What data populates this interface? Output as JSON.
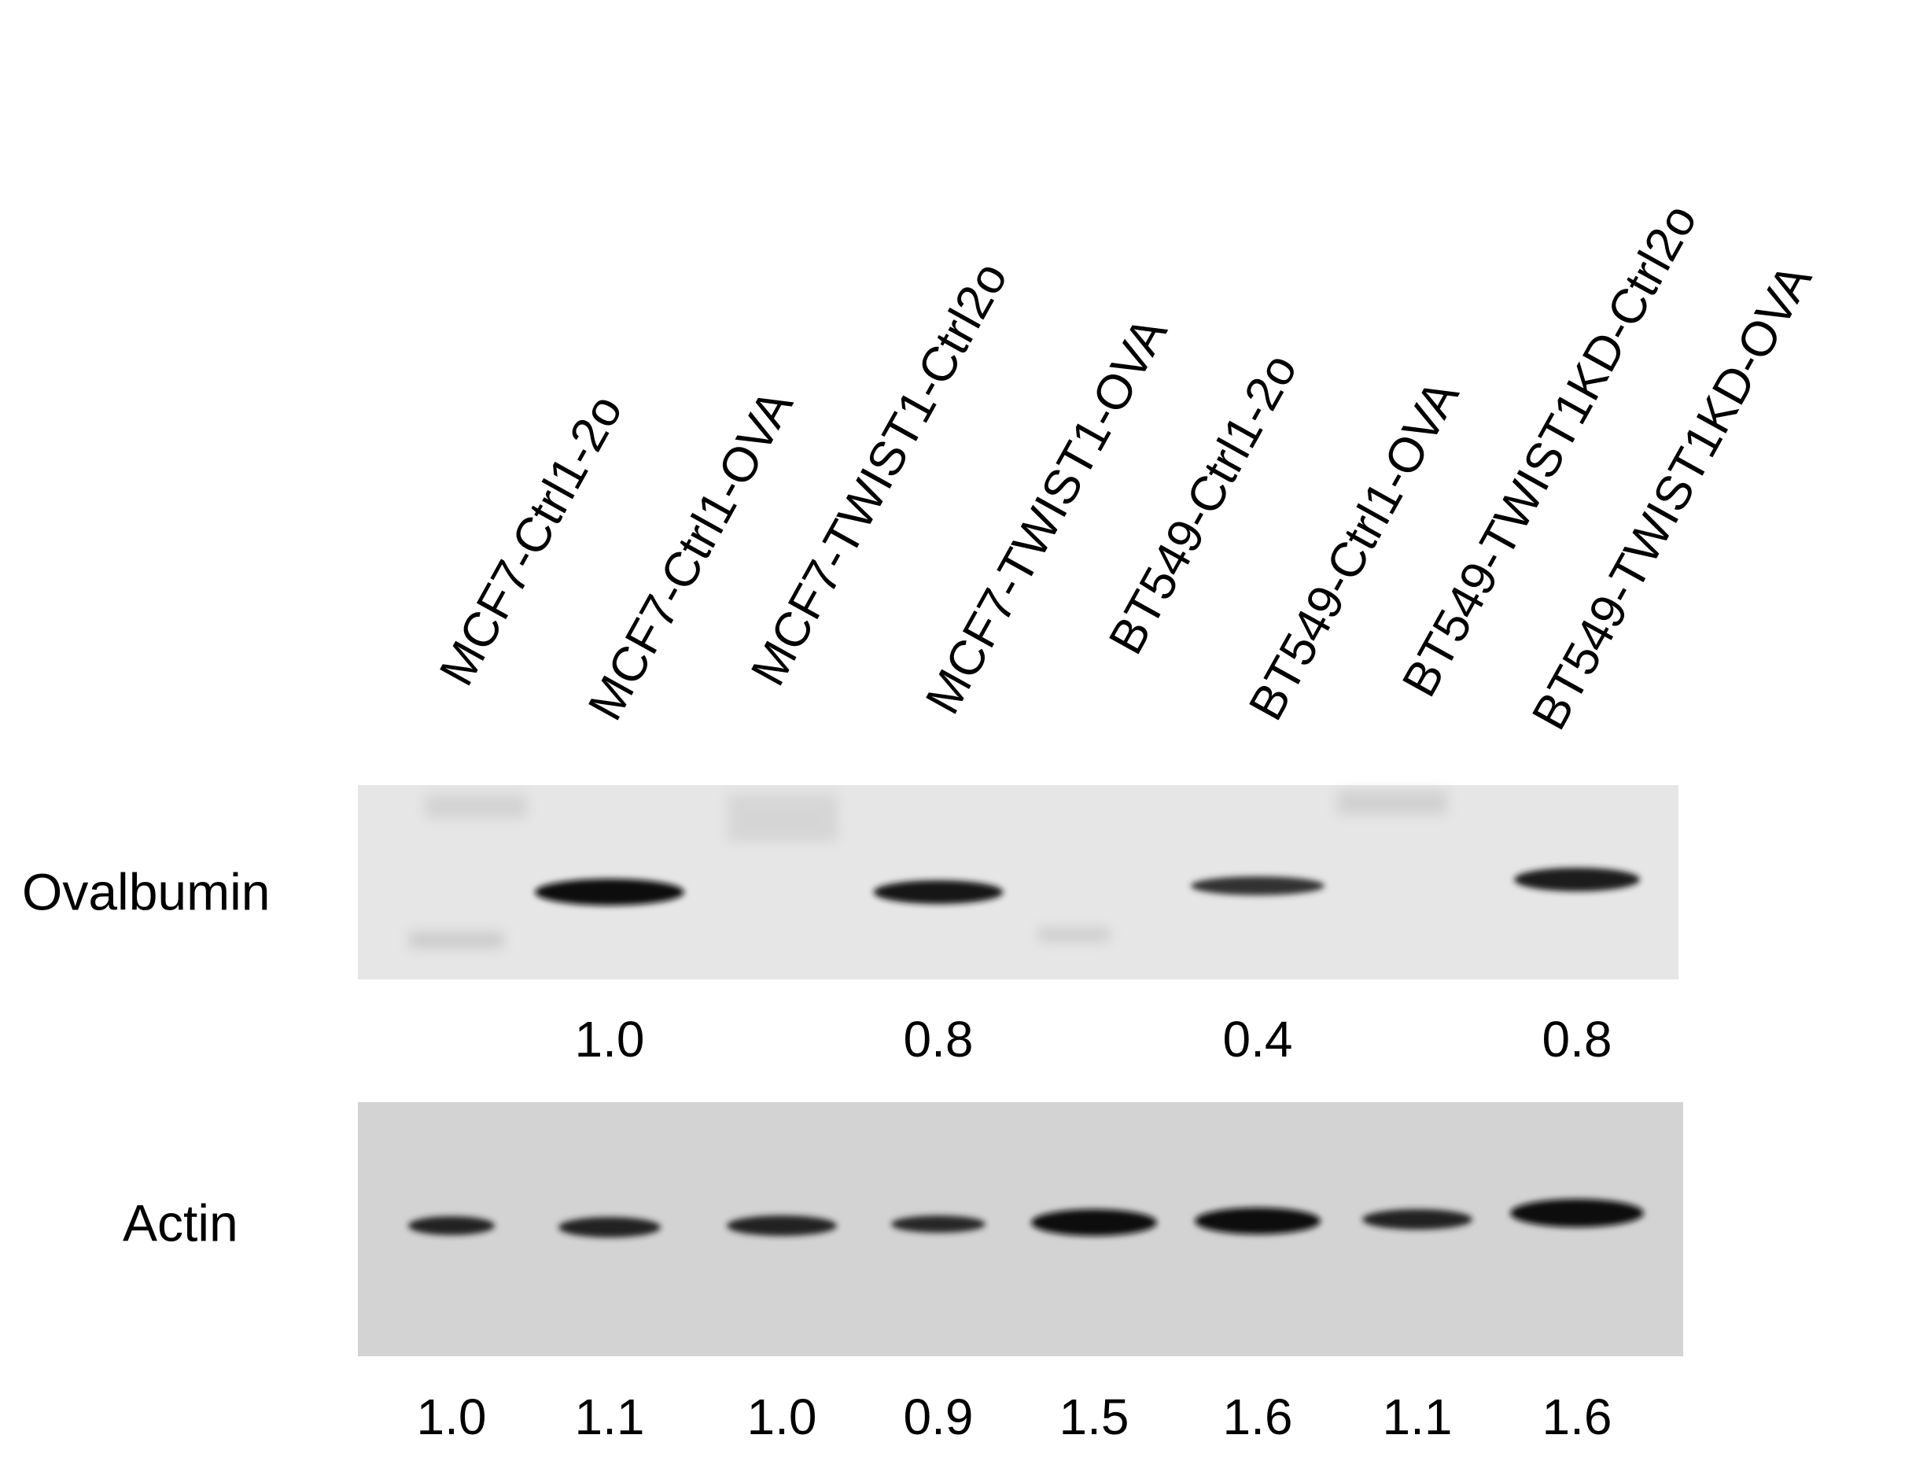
{
  "lanes": [
    "MCF7-Ctrl1-2o",
    "MCF7-Ctrl1-OVA",
    "MCF7-TWIST1-Ctrl2o",
    "MCF7-TWIST1-OVA",
    "BT549-Ctrl1-2o",
    "BT549-Ctrl1-OVA",
    "BT549-TWIST1KD-Ctrl2o",
    "BT549-TWIST1KD-OVA"
  ],
  "blots": [
    {
      "label": "Ovalbumin",
      "values": [
        "1.0",
        "0.8",
        "0.4",
        "0.8"
      ]
    },
    {
      "label": "Actin",
      "values": [
        "1.0",
        "1.1",
        "1.0",
        "0.9",
        "1.5",
        "1.6",
        "1.1",
        "1.6"
      ]
    }
  ]
}
